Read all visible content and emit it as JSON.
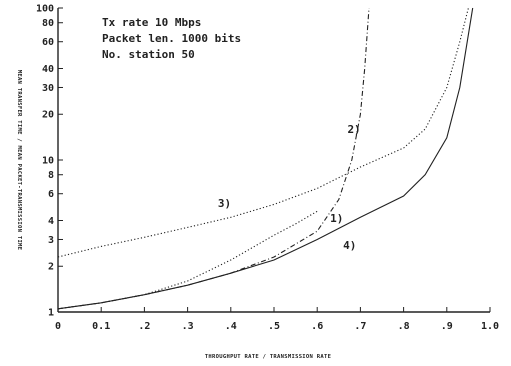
{
  "chart_data": {
    "type": "line",
    "xlabel": "THROUGHPUT RATE / TRANSMISSION RATE",
    "ylabel": "MEAN TRANSFER TIME / MEAN PACKET-TRANSMISSION TIME",
    "xlim": [
      0,
      1.0
    ],
    "ylim": [
      1,
      100
    ],
    "y_scale": "log",
    "grid": false,
    "x_ticks": [
      {
        "value": 0,
        "label": "0"
      },
      {
        "value": 0.1,
        "label": "0.1"
      },
      {
        "value": 0.2,
        "label": ".2"
      },
      {
        "value": 0.3,
        "label": ".3"
      },
      {
        "value": 0.4,
        "label": ".4"
      },
      {
        "value": 0.5,
        "label": ".5"
      },
      {
        "value": 0.6,
        "label": ".6"
      },
      {
        "value": 0.7,
        "label": ".7"
      },
      {
        "value": 0.8,
        "label": ".8"
      },
      {
        "value": 0.9,
        "label": ".9"
      },
      {
        "value": 1.0,
        "label": "1.0"
      }
    ],
    "y_ticks": [
      {
        "value": 1,
        "label": "1"
      },
      {
        "value": 2,
        "label": "2"
      },
      {
        "value": 3,
        "label": "3"
      },
      {
        "value": 4,
        "label": "4"
      },
      {
        "value": 6,
        "label": "6"
      },
      {
        "value": 8,
        "label": "8"
      },
      {
        "value": 10,
        "label": "10"
      },
      {
        "value": 20,
        "label": "20"
      },
      {
        "value": 30,
        "label": "30"
      },
      {
        "value": 40,
        "label": "40"
      },
      {
        "value": 60,
        "label": "60"
      },
      {
        "value": 80,
        "label": "80"
      },
      {
        "value": 100,
        "label": "100"
      }
    ],
    "annotations": [
      "Tx rate  10 Mbps",
      "Packet len.  1000 bits",
      "No. station  50"
    ],
    "series": [
      {
        "name": "1)",
        "style": "dotted",
        "x": [
          0,
          0.1,
          0.2,
          0.3,
          0.4,
          0.5,
          0.55,
          0.6
        ],
        "y": [
          1.05,
          1.15,
          1.3,
          1.6,
          2.2,
          3.2,
          3.8,
          4.6
        ]
      },
      {
        "name": "2)",
        "style": "dash-dot",
        "x": [
          0,
          0.1,
          0.2,
          0.3,
          0.4,
          0.5,
          0.6,
          0.65,
          0.68,
          0.7,
          0.71,
          0.72
        ],
        "y": [
          1.05,
          1.15,
          1.3,
          1.5,
          1.8,
          2.3,
          3.4,
          5.5,
          10,
          20,
          40,
          100
        ]
      },
      {
        "name": "3)",
        "style": "dotted",
        "x": [
          0,
          0.1,
          0.2,
          0.3,
          0.4,
          0.5,
          0.6,
          0.7,
          0.8,
          0.85,
          0.9,
          0.93,
          0.95
        ],
        "y": [
          2.3,
          2.7,
          3.1,
          3.6,
          4.2,
          5.1,
          6.5,
          9.0,
          12,
          16,
          30,
          60,
          100
        ]
      },
      {
        "name": "4)",
        "style": "solid",
        "x": [
          0,
          0.1,
          0.2,
          0.3,
          0.4,
          0.5,
          0.6,
          0.7,
          0.8,
          0.85,
          0.9,
          0.93,
          0.96
        ],
        "y": [
          1.05,
          1.15,
          1.3,
          1.5,
          1.8,
          2.2,
          3.0,
          4.2,
          5.8,
          8,
          14,
          30,
          100
        ]
      }
    ],
    "series_labels": [
      {
        "series": 0,
        "text": "1)",
        "x": 0.63,
        "y": 3.9
      },
      {
        "series": 1,
        "text": "2)",
        "x": 0.67,
        "y": 15
      },
      {
        "series": 2,
        "text": "3)",
        "x": 0.37,
        "y": 4.9
      },
      {
        "series": 3,
        "text": "4)",
        "x": 0.66,
        "y": 2.6
      }
    ]
  }
}
